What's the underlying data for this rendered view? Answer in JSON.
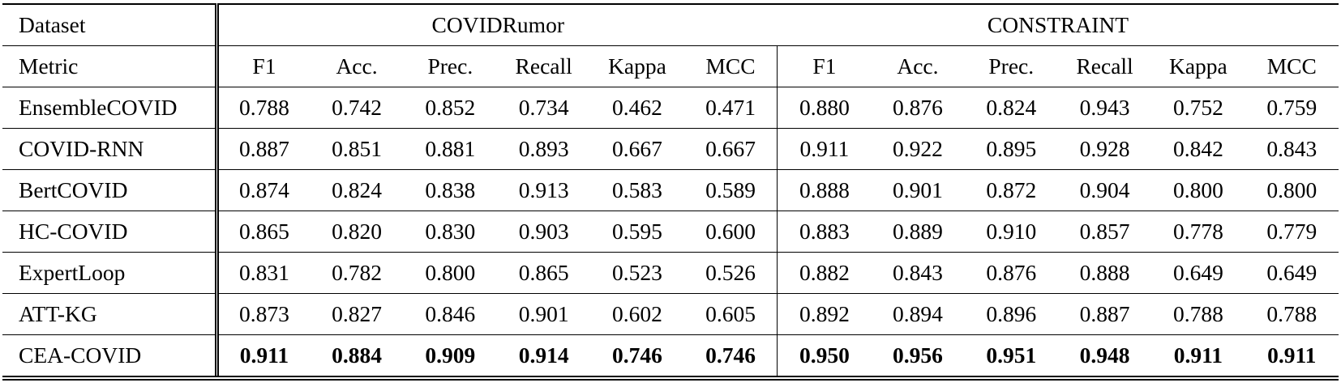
{
  "table": {
    "header": [
      "Dataset",
      "COVIDRumor",
      "CONSTRAINT"
    ],
    "metrics": [
      "Metric",
      "F1",
      "Acc.",
      "Prec.",
      "Recall",
      "Kappa",
      "MCC",
      "F1",
      "Acc.",
      "Prec.",
      "Recall",
      "Kappa",
      "MCC"
    ],
    "rows": [
      [
        "EnsembleCOVID",
        "0.788",
        "0.742",
        "0.852",
        "0.734",
        "0.462",
        "0.471",
        "0.880",
        "0.876",
        "0.824",
        "0.943",
        "0.752",
        "0.759"
      ],
      [
        "COVID-RNN",
        "0.887",
        "0.851",
        "0.881",
        "0.893",
        "0.667",
        "0.667",
        "0.911",
        "0.922",
        "0.895",
        "0.928",
        "0.842",
        "0.843"
      ],
      [
        "BertCOVID",
        "0.874",
        "0.824",
        "0.838",
        "0.913",
        "0.583",
        "0.589",
        "0.888",
        "0.901",
        "0.872",
        "0.904",
        "0.800",
        "0.800"
      ],
      [
        "HC-COVID",
        "0.865",
        "0.820",
        "0.830",
        "0.903",
        "0.595",
        "0.600",
        "0.883",
        "0.889",
        "0.910",
        "0.857",
        "0.778",
        "0.779"
      ],
      [
        "ExpertLoop",
        "0.831",
        "0.782",
        "0.800",
        "0.865",
        "0.523",
        "0.526",
        "0.882",
        "0.843",
        "0.876",
        "0.888",
        "0.649",
        "0.649"
      ],
      [
        "ATT-KG",
        "0.873",
        "0.827",
        "0.846",
        "0.901",
        "0.602",
        "0.605",
        "0.892",
        "0.894",
        "0.896",
        "0.887",
        "0.788",
        "0.788"
      ],
      [
        "CEA-COVID",
        "0.911",
        "0.884",
        "0.909",
        "0.914",
        "0.746",
        "0.746",
        "0.950",
        "0.956",
        "0.951",
        "0.948",
        "0.911",
        "0.911"
      ]
    ]
  }
}
